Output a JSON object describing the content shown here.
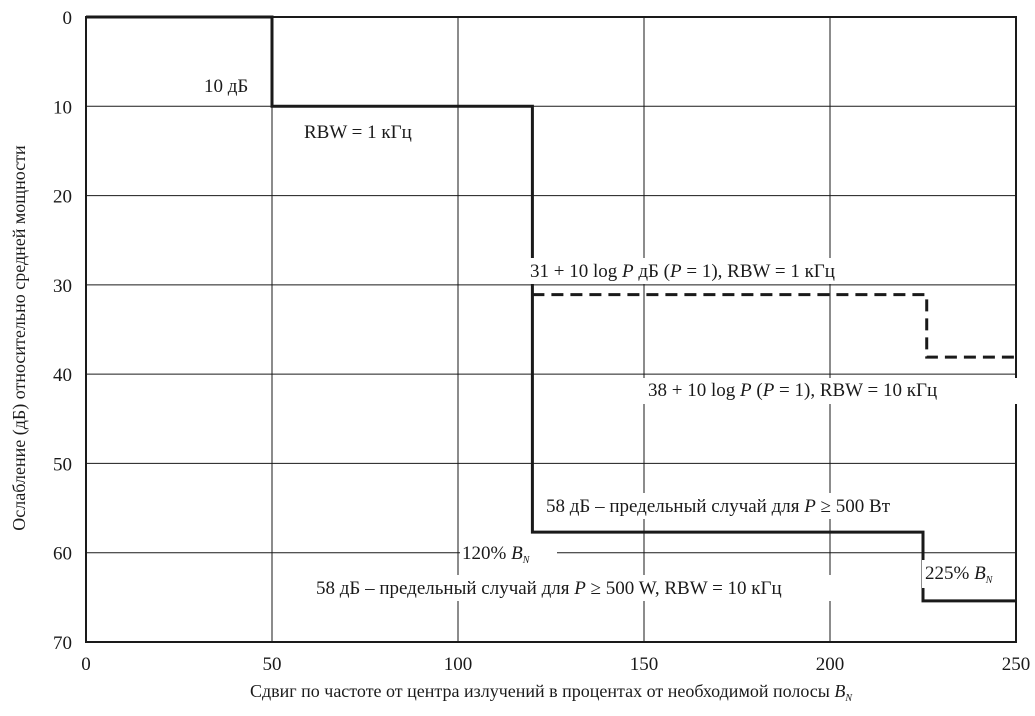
{
  "chart_data": {
    "type": "line",
    "xlim": [
      0,
      250
    ],
    "ylim": [
      0,
      70
    ],
    "y_inverted": true,
    "grid": true,
    "x_ticks": [
      "0",
      "50",
      "100",
      "150",
      "200",
      "250"
    ],
    "y_ticks": [
      "0",
      "10",
      "20",
      "30",
      "40",
      "50",
      "60",
      "70"
    ],
    "xlabel": "Сдвиг по частоте от центра излучений в процентах от необходимой полосы",
    "xlabel_symbol": "B",
    "xlabel_symbol_sub": "N",
    "ylabel": "Ослабление (дБ) относительно средней мощности",
    "series": [
      {
        "style": "solid",
        "color": "#1a1a1a",
        "x": [
          0,
          50,
          50,
          120,
          120,
          225,
          225,
          250
        ],
        "y": [
          0,
          0,
          10,
          10,
          57.7,
          57.7,
          65.4,
          65.4
        ]
      },
      {
        "style": "dashed",
        "color": "#1a1a1a",
        "x": [
          120,
          226,
          226,
          250
        ],
        "y": [
          31.1,
          31.1,
          38.1,
          38.1
        ]
      }
    ],
    "annotations": {
      "a1": "10 дБ",
      "a2": "RBW = 1 кГц",
      "a3_pre": "31 + 10 log",
      "a3_p": "P",
      "a3_mid": " дБ (",
      "a3_p2": "P",
      "a3_post": " = 1), RBW = 1 кГц",
      "a4_pre": "38 + 10 log",
      "a4_p": "P",
      "a4_mid": " (",
      "a4_p2": "P",
      "a4_post": " = 1), RBW = 10 кГц",
      "a5_pre": "58 дБ – предельный случай для ",
      "a5_p": "P",
      "a5_post": " ≥ 500 Вт",
      "a6_pct": "120% ",
      "a6_b": "B",
      "a6_sub": "N",
      "a7_pct": "225% ",
      "a7_b": "B",
      "a7_sub": "N",
      "a8_pre": "58 дБ – предельный случай для ",
      "a8_p": "P",
      "a8_post": " ≥ 500 W, RBW = 10  кГц"
    }
  }
}
